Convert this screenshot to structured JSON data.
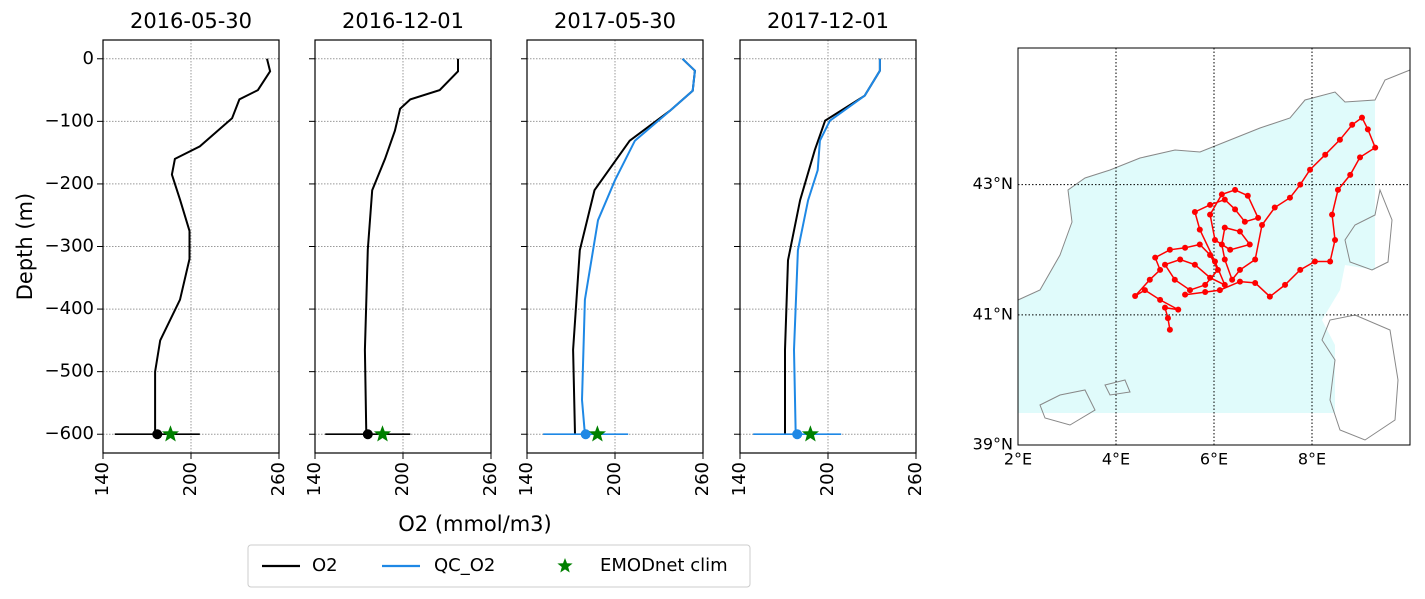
{
  "chart_data": [
    {
      "type": "profile",
      "title": "2016-05-30",
      "ylabel": "Depth (m)",
      "xlabel": "O2 (mmol/m3)",
      "xlim": [
        140,
        260
      ],
      "xticks": [
        140,
        200,
        260
      ],
      "ylim": [
        -630,
        30
      ],
      "yticks": [
        0,
        {
          "value": -100,
          "label": "−100"
        },
        {
          "value": -200,
          "label": "−200"
        },
        {
          "value": -300,
          "label": "−300"
        },
        {
          "value": -400,
          "label": "−400"
        },
        {
          "value": -500,
          "label": "−500"
        },
        {
          "value": -600,
          "label": "−600"
        }
      ],
      "ytick_labels": true,
      "grid": true,
      "series": [
        {
          "color": "#000000",
          "values": [
            251.8,
            253.9,
            245.6,
            233,
            228,
            206,
            189,
            187,
            192.5,
            199,
            199,
            192.5,
            179,
            175.5,
            175.5
          ],
          "depth": [
            0,
            -20,
            -50,
            -65,
            -95,
            -140,
            -160,
            -185,
            -225,
            -275,
            -320,
            -385,
            -450,
            -500,
            -600
          ]
        }
      ],
      "end": {
        "value": 177,
        "depth": -600,
        "error": 29,
        "color": "#000000"
      },
      "clim": {
        "value": 186,
        "depth": -600,
        "color": "#008000"
      }
    },
    {
      "type": "profile",
      "title": "2016-12-01",
      "xlim": [
        140,
        260
      ],
      "xticks": [
        140,
        200,
        260
      ],
      "ylim": [
        -630,
        30
      ],
      "yticks": [
        0,
        -100,
        -200,
        -300,
        -400,
        -500,
        -600
      ],
      "ytick_labels": false,
      "grid": true,
      "series": [
        {
          "color": "#000000",
          "values": [
            237.5,
            237.5,
            225,
            205,
            198,
            194.5,
            187.7,
            179,
            176,
            174,
            175
          ],
          "depth": [
            0,
            -20,
            -50,
            -65,
            -80,
            -115,
            -160,
            -210,
            -305,
            -465,
            -600
          ]
        }
      ],
      "end": {
        "value": 176,
        "depth": -600,
        "error": 29,
        "color": "#000000"
      },
      "clim": {
        "value": 186,
        "depth": -600,
        "color": "#008000"
      }
    },
    {
      "type": "profile",
      "title": "2017-05-30",
      "xlim": [
        140,
        260
      ],
      "xticks": [
        140,
        200,
        260
      ],
      "ylim": [
        -630,
        30
      ],
      "yticks": [
        0,
        -100,
        -200,
        -300,
        -400,
        -500,
        -600
      ],
      "ytick_labels": false,
      "grid": true,
      "series": [
        {
          "name": "O2",
          "color": "#000000",
          "values": [
            246,
            254.5,
            253,
            237.5,
            210,
            186,
            176,
            171.4,
            172.7
          ],
          "depth": [
            0,
            -19,
            -51,
            -83,
            -131,
            -210,
            -306,
            -465,
            -600
          ]
        },
        {
          "name": "QC_O2",
          "color": "#1e88e5",
          "values": [
            246,
            254.5,
            253,
            237.5,
            213.6,
            200,
            188.4,
            179.5,
            177.5,
            179.5
          ],
          "depth": [
            0,
            -19,
            -51,
            -83,
            -131,
            -194,
            -258,
            -385,
            -545,
            -600
          ]
        }
      ],
      "end": {
        "value": 180,
        "depth": -600,
        "error": 29,
        "color": "#1e88e5"
      },
      "clim": {
        "name": "EMODnet clim",
        "value": 188,
        "depth": -600,
        "color": "#008000"
      }
    },
    {
      "type": "profile",
      "title": "2017-12-01",
      "xlim": [
        140,
        260
      ],
      "xticks": [
        140,
        200,
        260
      ],
      "ylim": [
        -630,
        30
      ],
      "yticks": [
        0,
        -100,
        -200,
        -300,
        -400,
        -500,
        -600
      ],
      "ytick_labels": false,
      "grid": true,
      "series": [
        {
          "color": "#000000",
          "values": [
            235.4,
            235.4,
            225,
            198,
            191,
            181,
            172.7,
            170.7,
            170.7
          ],
          "depth": [
            0,
            -19,
            -59,
            -99,
            -146,
            -226,
            -322,
            -465,
            -600
          ]
        },
        {
          "color": "#1e88e5",
          "values": [
            235.4,
            235.4,
            225,
            201.3,
            194.5,
            193,
            186.4,
            179.5,
            176.8,
            178
          ],
          "depth": [
            0,
            -19,
            -59,
            -99,
            -131,
            -178,
            -226,
            -306,
            -465,
            -600
          ]
        }
      ],
      "end": {
        "value": 179,
        "depth": -600,
        "error": 30,
        "color": "#1e88e5"
      },
      "clim": {
        "value": 188,
        "depth": -600,
        "color": "#008000"
      }
    },
    {
      "type": "map",
      "xlim": [
        2,
        10
      ],
      "ylim": [
        39,
        45.1
      ],
      "xticks": [
        {
          "value": 2,
          "label": "2°E"
        },
        {
          "value": 4,
          "label": "4°E"
        },
        {
          "value": 6,
          "label": "6°E"
        },
        {
          "value": 8,
          "label": "8°E"
        }
      ],
      "yticks": [
        {
          "value": 39,
          "label": "39°N"
        },
        {
          "value": 41,
          "label": "41°N"
        },
        {
          "value": 43,
          "label": "43°N"
        }
      ],
      "grid": true,
      "series": [
        {
          "color": "#ff0000",
          "x": [
            5.1,
            5.06,
            5.0,
            5.27,
            4.9,
            4.59,
            4.39,
            4.69,
            4.9,
            4.8,
            5.1,
            5.41,
            5.71,
            5.92,
            6.08,
            5.82,
            5.51,
            5.2,
            5.0,
            5.31,
            5.61,
            5.92,
            6.22,
            6.02,
            5.71,
            5.61,
            5.92,
            6.22,
            6.43,
            6.63,
            6.9,
            6.69,
            6.43,
            6.16,
            5.92,
            6.02,
            6.33,
            6.73,
            6.53,
            6.22,
            6.16,
            6.22,
            6.37,
            6.53,
            6.84,
            6.98,
            7.24,
            7.55,
            7.76,
            7.96,
            8.27,
            8.57,
            8.82,
            9.02,
            9.14,
            9.29,
            8.98,
            8.78,
            8.53,
            8.41,
            8.47,
            8.37,
            8.06,
            7.76,
            7.45,
            7.14,
            6.84,
            6.53,
            6.12,
            5.82,
            5.41
          ],
          "y": [
            40.77,
            40.95,
            41.11,
            41.08,
            41.23,
            41.38,
            41.29,
            41.54,
            41.69,
            41.88,
            42.0,
            42.03,
            42.08,
            41.92,
            41.69,
            41.46,
            41.38,
            41.54,
            41.77,
            41.85,
            41.77,
            41.57,
            41.46,
            41.82,
            42.31,
            42.58,
            42.69,
            42.77,
            42.62,
            42.43,
            42.49,
            42.83,
            42.92,
            42.85,
            42.54,
            42.15,
            42.0,
            42.08,
            42.28,
            42.34,
            42.08,
            41.85,
            41.54,
            41.69,
            41.85,
            42.38,
            42.65,
            42.8,
            43.0,
            43.23,
            43.46,
            43.69,
            43.92,
            44.03,
            43.85,
            43.57,
            43.42,
            43.15,
            42.92,
            42.54,
            42.15,
            41.82,
            41.82,
            41.69,
            41.46,
            41.28,
            41.49,
            41.51,
            41.38,
            41.35,
            41.31
          ]
        }
      ]
    }
  ]
}
